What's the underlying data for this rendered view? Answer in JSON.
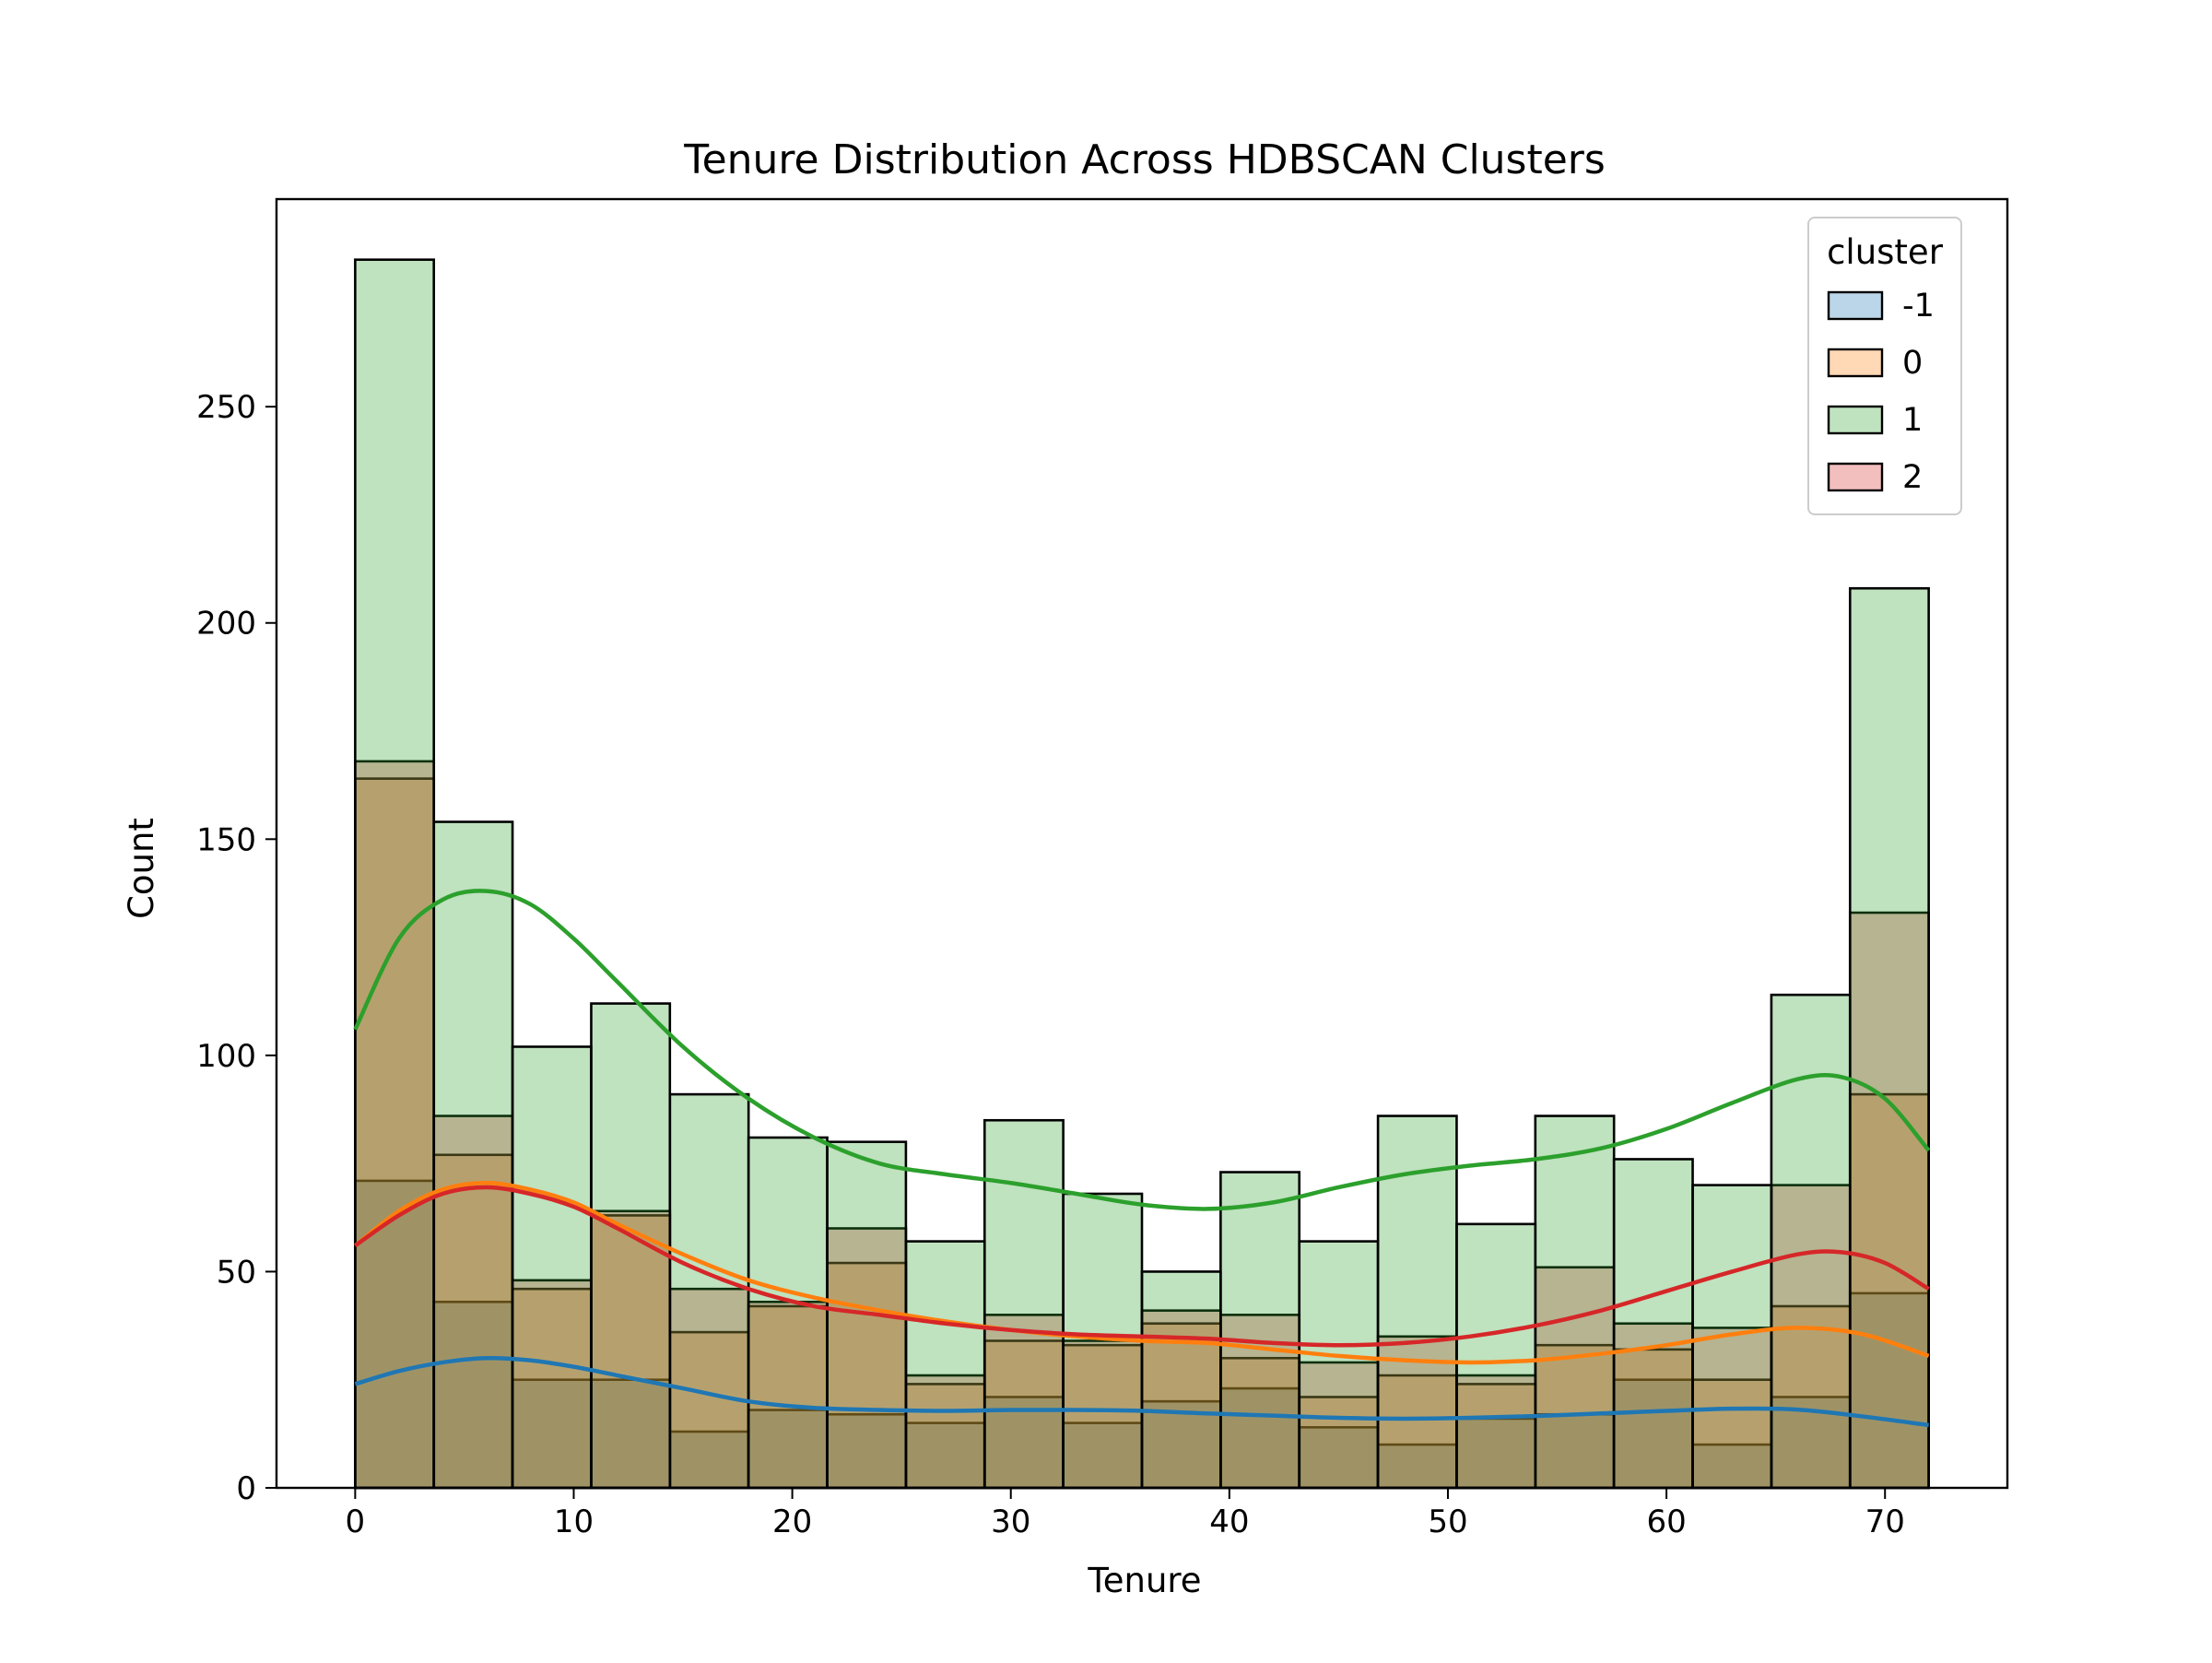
{
  "chart_data": {
    "type": "histogram",
    "title": "Tenure Distribution Across HDBSCAN Clusters",
    "xlabel": "Tenure",
    "ylabel": "Count",
    "xlim": [
      -3.6,
      75.6
    ],
    "ylim": [
      0,
      298
    ],
    "xticks": [
      0,
      10,
      20,
      30,
      40,
      50,
      60,
      70
    ],
    "yticks": [
      0,
      50,
      100,
      150,
      200,
      250
    ],
    "legend": {
      "title": "cluster",
      "position": "top-right",
      "entries": [
        "-1",
        "0",
        "1",
        "2"
      ]
    },
    "bin_edges": [
      0,
      3.6,
      7.2,
      10.8,
      14.4,
      18,
      21.6,
      25.2,
      28.8,
      32.4,
      36,
      39.6,
      43.2,
      46.8,
      50.4,
      54,
      57.6,
      61.2,
      64.8,
      68.4,
      72
    ],
    "stack_order": [
      "-1",
      "0",
      "2",
      "1"
    ],
    "series": [
      {
        "name": "-1",
        "color": "#1f77b4",
        "counts": [
          71,
          43,
          25,
          25,
          13,
          18,
          17,
          15,
          21,
          15,
          20,
          23,
          14,
          10,
          16,
          17,
          25,
          10,
          21,
          45
        ],
        "kde": [
          [
            0,
            24
          ],
          [
            2,
            27
          ],
          [
            4,
            29
          ],
          [
            6,
            30
          ],
          [
            8,
            29.5
          ],
          [
            10,
            28
          ],
          [
            12,
            26
          ],
          [
            15,
            23
          ],
          [
            18,
            20
          ],
          [
            21,
            18.5
          ],
          [
            24,
            18
          ],
          [
            27,
            17.8
          ],
          [
            30,
            18
          ],
          [
            33,
            18
          ],
          [
            36,
            17.8
          ],
          [
            39,
            17.2
          ],
          [
            42,
            16.7
          ],
          [
            45,
            16.2
          ],
          [
            48,
            16
          ],
          [
            51,
            16.2
          ],
          [
            54,
            16.6
          ],
          [
            57,
            17.2
          ],
          [
            60,
            17.8
          ],
          [
            63,
            18.3
          ],
          [
            66,
            18.1
          ],
          [
            69,
            16.5
          ],
          [
            72,
            14.5
          ]
        ]
      },
      {
        "name": "0",
        "color": "#ff7f0e",
        "counts": [
          164,
          77,
          46,
          63,
          36,
          42,
          52,
          24,
          34,
          33,
          38,
          30,
          21,
          26,
          24,
          33,
          32,
          25,
          42,
          91
        ],
        "kde": [
          [
            0,
            56
          ],
          [
            2,
            64
          ],
          [
            4,
            69
          ],
          [
            6,
            70.5
          ],
          [
            8,
            69
          ],
          [
            10,
            66
          ],
          [
            12,
            61
          ],
          [
            15,
            54
          ],
          [
            18,
            48
          ],
          [
            21,
            44
          ],
          [
            24,
            41
          ],
          [
            27,
            38.5
          ],
          [
            30,
            36.5
          ],
          [
            33,
            35
          ],
          [
            36,
            34
          ],
          [
            39,
            33.5
          ],
          [
            42,
            32
          ],
          [
            45,
            30.5
          ],
          [
            48,
            29.5
          ],
          [
            51,
            29
          ],
          [
            54,
            29.5
          ],
          [
            57,
            31
          ],
          [
            60,
            33
          ],
          [
            63,
            35.5
          ],
          [
            66,
            37
          ],
          [
            69,
            35.5
          ],
          [
            72,
            30.5
          ]
        ]
      },
      {
        "name": "2",
        "color": "#d62728",
        "counts": [
          168,
          86,
          48,
          64,
          46,
          43,
          60,
          26,
          40,
          34,
          41,
          40,
          29,
          35,
          26,
          51,
          38,
          37,
          70,
          133
        ],
        "kde": [
          [
            0,
            56
          ],
          [
            2,
            63
          ],
          [
            4,
            68
          ],
          [
            6,
            69.5
          ],
          [
            8,
            68
          ],
          [
            10,
            65
          ],
          [
            12,
            60
          ],
          [
            15,
            52
          ],
          [
            18,
            46
          ],
          [
            21,
            42
          ],
          [
            24,
            40
          ],
          [
            27,
            38
          ],
          [
            30,
            36.5
          ],
          [
            33,
            35.5
          ],
          [
            36,
            35
          ],
          [
            39,
            34.5
          ],
          [
            42,
            33.5
          ],
          [
            45,
            33
          ],
          [
            48,
            33.5
          ],
          [
            51,
            35
          ],
          [
            54,
            37.5
          ],
          [
            57,
            41
          ],
          [
            60,
            45.5
          ],
          [
            63,
            50
          ],
          [
            66,
            54
          ],
          [
            68,
            54.5
          ],
          [
            70,
            52
          ],
          [
            72,
            46
          ]
        ]
      },
      {
        "name": "1",
        "color": "#2ca02c",
        "counts": [
          284,
          154,
          102,
          112,
          91,
          81,
          80,
          57,
          85,
          68,
          50,
          73,
          57,
          86,
          61,
          86,
          76,
          70,
          114,
          208
        ],
        "kde": [
          [
            0,
            106
          ],
          [
            2,
            127
          ],
          [
            4,
            136
          ],
          [
            6,
            138
          ],
          [
            8,
            135
          ],
          [
            10,
            127
          ],
          [
            12,
            117
          ],
          [
            15,
            102
          ],
          [
            18,
            90
          ],
          [
            21,
            81
          ],
          [
            24,
            75
          ],
          [
            27,
            72.5
          ],
          [
            30,
            70.5
          ],
          [
            33,
            68
          ],
          [
            36,
            65.5
          ],
          [
            39,
            64.5
          ],
          [
            42,
            66
          ],
          [
            45,
            69.5
          ],
          [
            48,
            72.5
          ],
          [
            51,
            74.5
          ],
          [
            54,
            76
          ],
          [
            57,
            78.5
          ],
          [
            60,
            83
          ],
          [
            63,
            89
          ],
          [
            66,
            94.5
          ],
          [
            68,
            95
          ],
          [
            70,
            90
          ],
          [
            72,
            78
          ]
        ]
      }
    ]
  }
}
